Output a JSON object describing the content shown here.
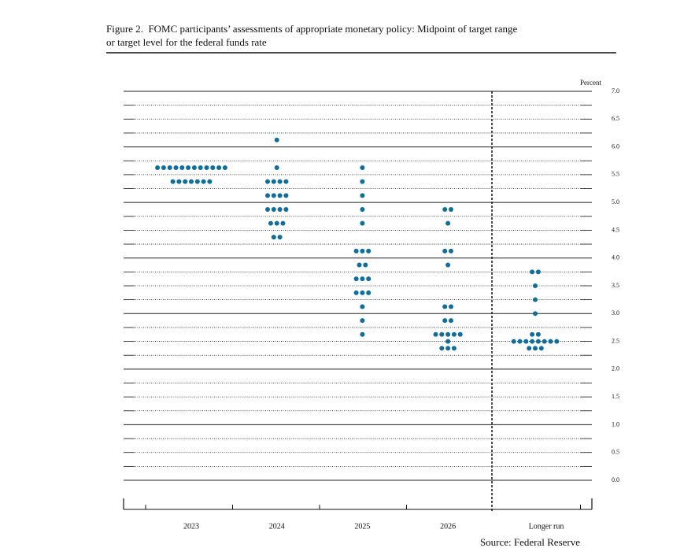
{
  "chart_data": {
    "type": "dot",
    "title": "Figure 2.  FOMC participants’ assessments of appropriate monetary policy: Midpoint of target range or target level for the federal funds rate",
    "y_label": "Percent",
    "source": "Source: Federal Reserve",
    "color": "#0f6e9c",
    "categories": [
      "2023",
      "2024",
      "2025",
      "2026",
      "Longer run"
    ],
    "values": [
      [
        5.625,
        5.625,
        5.625,
        5.625,
        5.625,
        5.625,
        5.625,
        5.625,
        5.625,
        5.625,
        5.625,
        5.625,
        5.375,
        5.375,
        5.375,
        5.375,
        5.375,
        5.375,
        5.375
      ],
      [
        6.125,
        5.625,
        5.375,
        5.375,
        5.375,
        5.375,
        5.125,
        5.125,
        5.125,
        5.125,
        4.875,
        4.875,
        4.875,
        4.875,
        4.625,
        4.625,
        4.625,
        4.375,
        4.375
      ],
      [
        5.625,
        5.375,
        5.125,
        4.875,
        4.625,
        4.125,
        4.125,
        4.125,
        3.875,
        3.875,
        3.625,
        3.625,
        3.625,
        3.375,
        3.375,
        3.375,
        3.125,
        2.875,
        2.625
      ],
      [
        4.875,
        4.875,
        4.625,
        4.125,
        4.125,
        3.875,
        3.125,
        3.125,
        2.875,
        2.875,
        2.625,
        2.625,
        2.625,
        2.625,
        2.625,
        2.5,
        2.375,
        2.375,
        2.375
      ],
      [
        3.75,
        3.75,
        3.5,
        3.25,
        3.0,
        2.625,
        2.625,
        2.5,
        2.5,
        2.5,
        2.5,
        2.5,
        2.5,
        2.5,
        2.5,
        2.375,
        2.375,
        2.375
      ]
    ],
    "ylim": [
      0,
      7
    ],
    "yticks": [
      {
        "value": 0,
        "label": "0.0"
      },
      0.5,
      {
        "value": 1,
        "label": "1.0"
      },
      1.5,
      {
        "value": 2,
        "label": "2.0"
      },
      2.5,
      {
        "value": 3,
        "label": "3.0"
      },
      3.5,
      {
        "value": 4,
        "label": "4.0"
      },
      4.5,
      {
        "value": 5,
        "label": "5.0"
      },
      5.5,
      {
        "value": 6,
        "label": "6.0"
      },
      6.5,
      {
        "value": 7,
        "label": "7.0"
      }
    ],
    "grid": true
  }
}
